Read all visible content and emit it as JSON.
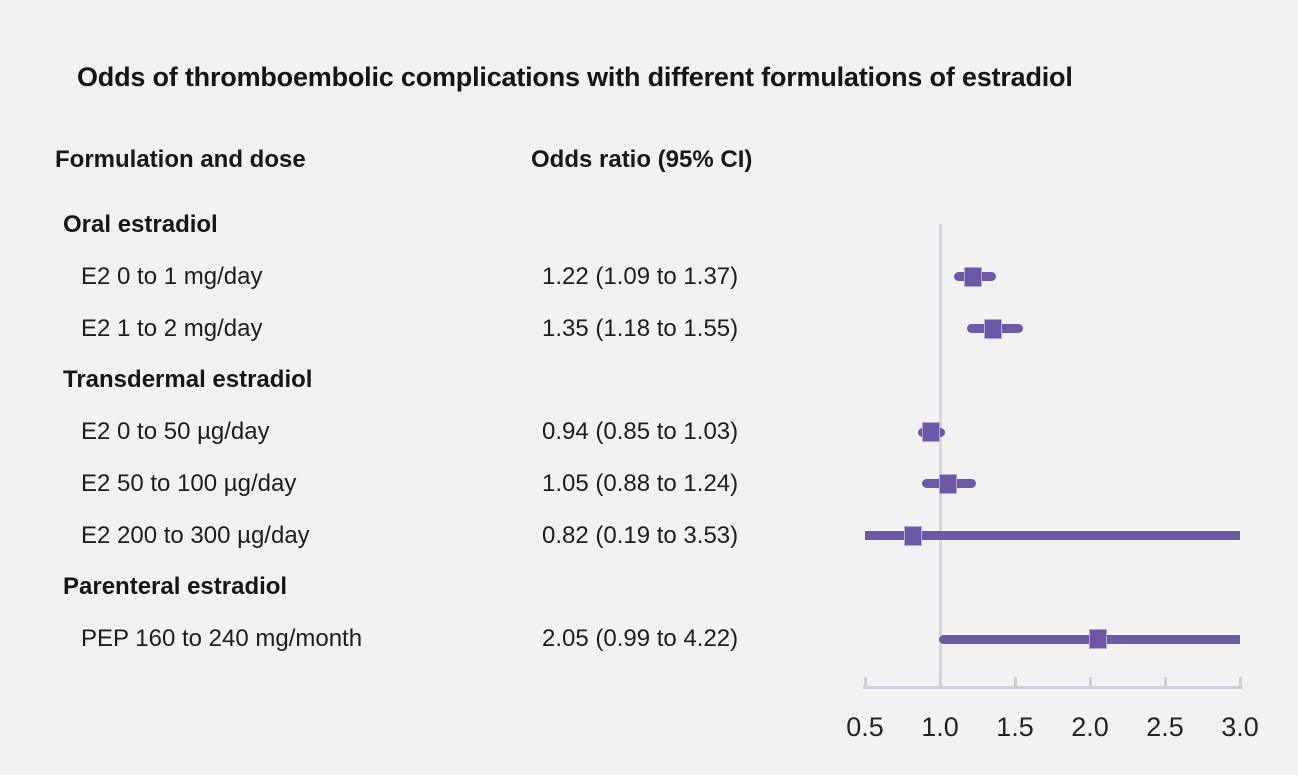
{
  "title": "Odds of thromboembolic complications with different formulations of estradiol",
  "columns": {
    "formulation": "Formulation and dose",
    "odds_ratio": "Odds ratio (95% CI)"
  },
  "chart_data": {
    "type": "forest",
    "title": "Odds of thromboembolic complications with different formulations of estradiol",
    "xlabel": "",
    "ylabel": "",
    "axis": {
      "min": 0.5,
      "max": 3.0,
      "ticks": [
        0.5,
        1.0,
        1.5,
        2.0,
        2.5,
        3.0
      ],
      "tick_labels": [
        "0.5",
        "1.0",
        "1.5",
        "2.0",
        "2.5",
        "3.0"
      ],
      "reference_line": 1.0,
      "grid": false
    },
    "rows": [
      {
        "kind": "group",
        "label": "Oral estradiol"
      },
      {
        "kind": "item",
        "label": "E2 0 to 1 mg/day",
        "or_text": "1.22 (1.09 to 1.37)",
        "estimate": 1.22,
        "ci_low": 1.09,
        "ci_high": 1.37
      },
      {
        "kind": "item",
        "label": "E2 1 to 2 mg/day",
        "or_text": "1.35 (1.18 to 1.55)",
        "estimate": 1.35,
        "ci_low": 1.18,
        "ci_high": 1.55
      },
      {
        "kind": "group",
        "label": "Transdermal estradiol"
      },
      {
        "kind": "item",
        "label": "E2 0 to 50 µg/day",
        "or_text": "0.94 (0.85 to 1.03)",
        "estimate": 0.94,
        "ci_low": 0.85,
        "ci_high": 1.03
      },
      {
        "kind": "item",
        "label": "E2 50 to 100 µg/day",
        "or_text": "1.05 (0.88 to 1.24)",
        "estimate": 1.05,
        "ci_low": 0.88,
        "ci_high": 1.24
      },
      {
        "kind": "item",
        "label": "E2 200 to 300 µg/day",
        "or_text": "0.82 (0.19 to 3.53)",
        "estimate": 0.82,
        "ci_low": 0.19,
        "ci_high": 3.53
      },
      {
        "kind": "group",
        "label": "Parenteral estradiol"
      },
      {
        "kind": "item",
        "label": "PEP 160 to 240 mg/month",
        "or_text": "2.05 (0.99 to 4.22)",
        "estimate": 2.05,
        "ci_low": 0.99,
        "ci_high": 4.22
      }
    ],
    "colors": {
      "background": "#f2f2f2",
      "text": "#1b1d21",
      "ci_line": "#6c5aa6",
      "marker_fill": "#6a58a6",
      "marker_border": "#b2a6d0",
      "axis": "#cdd2da",
      "reference_line": "#d2d6de"
    }
  }
}
